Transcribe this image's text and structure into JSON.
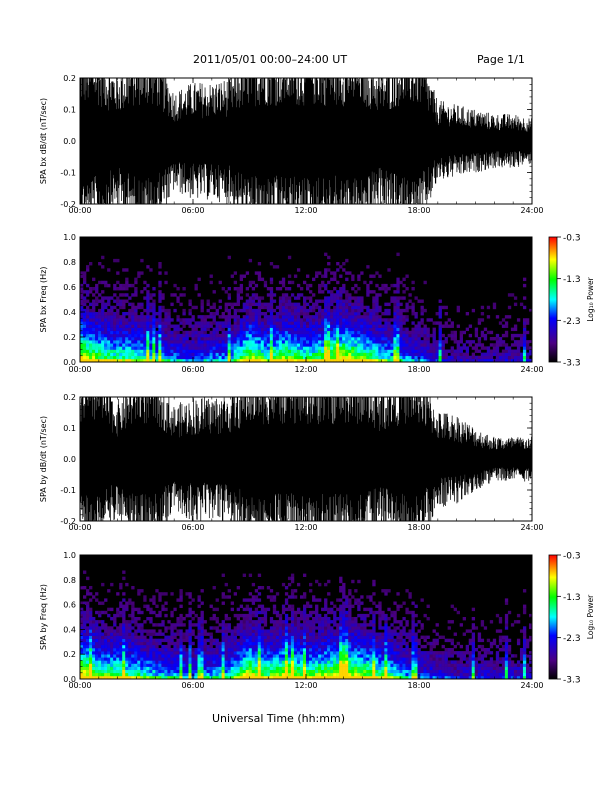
{
  "header": {
    "title": "2011/05/01   00:00–24:00 UT",
    "page": "Page 1/1"
  },
  "x_axis_label": "Universal Time (hh:mm)",
  "colors": {
    "trace": "#000000",
    "background": "#ffffff",
    "colorbar": [
      "#000000",
      "#4b0082",
      "#0000ff",
      "#00ffff",
      "#00ff00",
      "#ffff00",
      "#ff0000"
    ]
  },
  "chart_data": [
    {
      "type": "line",
      "id": "bx_dbdt",
      "ylabel": "SPA bx dB/dt (nT/sec)",
      "x_ticks": [
        "00:00",
        "06:00",
        "12:00",
        "18:00",
        "24:00"
      ],
      "y_ticks": [
        "-0.2",
        "-0.1",
        "0.0",
        "0.1",
        "0.2"
      ],
      "xlim": [
        0,
        24
      ],
      "ylim": [
        -0.2,
        0.2
      ],
      "envelope": {
        "x": [
          0,
          1,
          2,
          3,
          4,
          5,
          6,
          7,
          8,
          9,
          10,
          11,
          12,
          13,
          14,
          15,
          16,
          17,
          18,
          19,
          20,
          21,
          22,
          23,
          24
        ],
        "amplitude": [
          0.2,
          0.2,
          0.15,
          0.2,
          0.2,
          0.11,
          0.13,
          0.13,
          0.14,
          0.2,
          0.2,
          0.2,
          0.2,
          0.2,
          0.2,
          0.2,
          0.15,
          0.2,
          0.2,
          0.09,
          0.08,
          0.07,
          0.06,
          0.06,
          0.05
        ]
      }
    },
    {
      "type": "heatmap",
      "id": "bx_spectrogram",
      "ylabel": "SPA bx Freq (Hz)",
      "x_ticks": [
        "00:00",
        "06:00",
        "12:00",
        "18:00",
        "24:00"
      ],
      "y_ticks": [
        "0.0",
        "0.2",
        "0.4",
        "0.6",
        "0.8",
        "1.0"
      ],
      "xlim": [
        0,
        24
      ],
      "ylim": [
        0,
        1
      ],
      "colorbar": {
        "label": "Log₁₀ Power",
        "ticks": [
          "-0.3",
          "-1.3",
          "-2.3",
          "-3.3"
        ],
        "range": [
          -3.3,
          -0.3
        ]
      },
      "activity": {
        "x": [
          0,
          1,
          2,
          3,
          4,
          5,
          6,
          7,
          8,
          9,
          10,
          11,
          12,
          13,
          14,
          15,
          16,
          17,
          18,
          19,
          20,
          21,
          22,
          23,
          24
        ],
        "level": [
          0.9,
          0.7,
          0.6,
          0.6,
          0.5,
          0.4,
          0.35,
          0.4,
          0.45,
          0.8,
          0.6,
          0.75,
          0.6,
          0.7,
          0.85,
          0.7,
          0.55,
          0.45,
          0.35,
          0.25,
          0.2,
          0.2,
          0.2,
          0.2,
          0.2
        ]
      }
    },
    {
      "type": "line",
      "id": "by_dbdt",
      "ylabel": "SPA by dB/dt (nT/sec)",
      "x_ticks": [
        "00:00",
        "06:00",
        "12:00",
        "18:00",
        "24:00"
      ],
      "y_ticks": [
        "-0.2",
        "-0.1",
        "0.0",
        "0.1",
        "0.2"
      ],
      "xlim": [
        0,
        24
      ],
      "ylim": [
        -0.2,
        0.2
      ],
      "envelope": {
        "x": [
          0,
          1,
          2,
          3,
          4,
          5,
          6,
          7,
          8,
          9,
          10,
          11,
          12,
          13,
          14,
          15,
          16,
          17,
          18,
          19,
          20,
          21,
          22,
          23,
          24
        ],
        "amplitude": [
          0.2,
          0.2,
          0.13,
          0.2,
          0.2,
          0.12,
          0.14,
          0.14,
          0.15,
          0.2,
          0.2,
          0.2,
          0.2,
          0.2,
          0.2,
          0.2,
          0.16,
          0.2,
          0.2,
          0.11,
          0.1,
          0.07,
          0.05,
          0.05,
          0.05
        ]
      }
    },
    {
      "type": "heatmap",
      "id": "by_spectrogram",
      "ylabel": "SPA by Freq (Hz)",
      "x_ticks": [
        "00:00",
        "06:00",
        "12:00",
        "18:00",
        "24:00"
      ],
      "y_ticks": [
        "0.0",
        "0.2",
        "0.4",
        "0.6",
        "0.8",
        "1.0"
      ],
      "xlim": [
        0,
        24
      ],
      "ylim": [
        0,
        1
      ],
      "colorbar": {
        "label": "Log₁₀ Power",
        "ticks": [
          "-0.3",
          "-1.3",
          "-2.3",
          "-3.3"
        ],
        "range": [
          -3.3,
          -0.3
        ]
      },
      "activity": {
        "x": [
          0,
          1,
          2,
          3,
          4,
          5,
          6,
          7,
          8,
          9,
          10,
          11,
          12,
          13,
          14,
          15,
          16,
          17,
          18,
          19,
          20,
          21,
          22,
          23,
          24
        ],
        "level": [
          0.9,
          0.7,
          0.65,
          0.6,
          0.5,
          0.45,
          0.4,
          0.45,
          0.5,
          0.85,
          0.65,
          0.8,
          0.65,
          0.75,
          0.85,
          0.75,
          0.6,
          0.5,
          0.35,
          0.3,
          0.25,
          0.25,
          0.25,
          0.25,
          0.25
        ]
      }
    }
  ]
}
